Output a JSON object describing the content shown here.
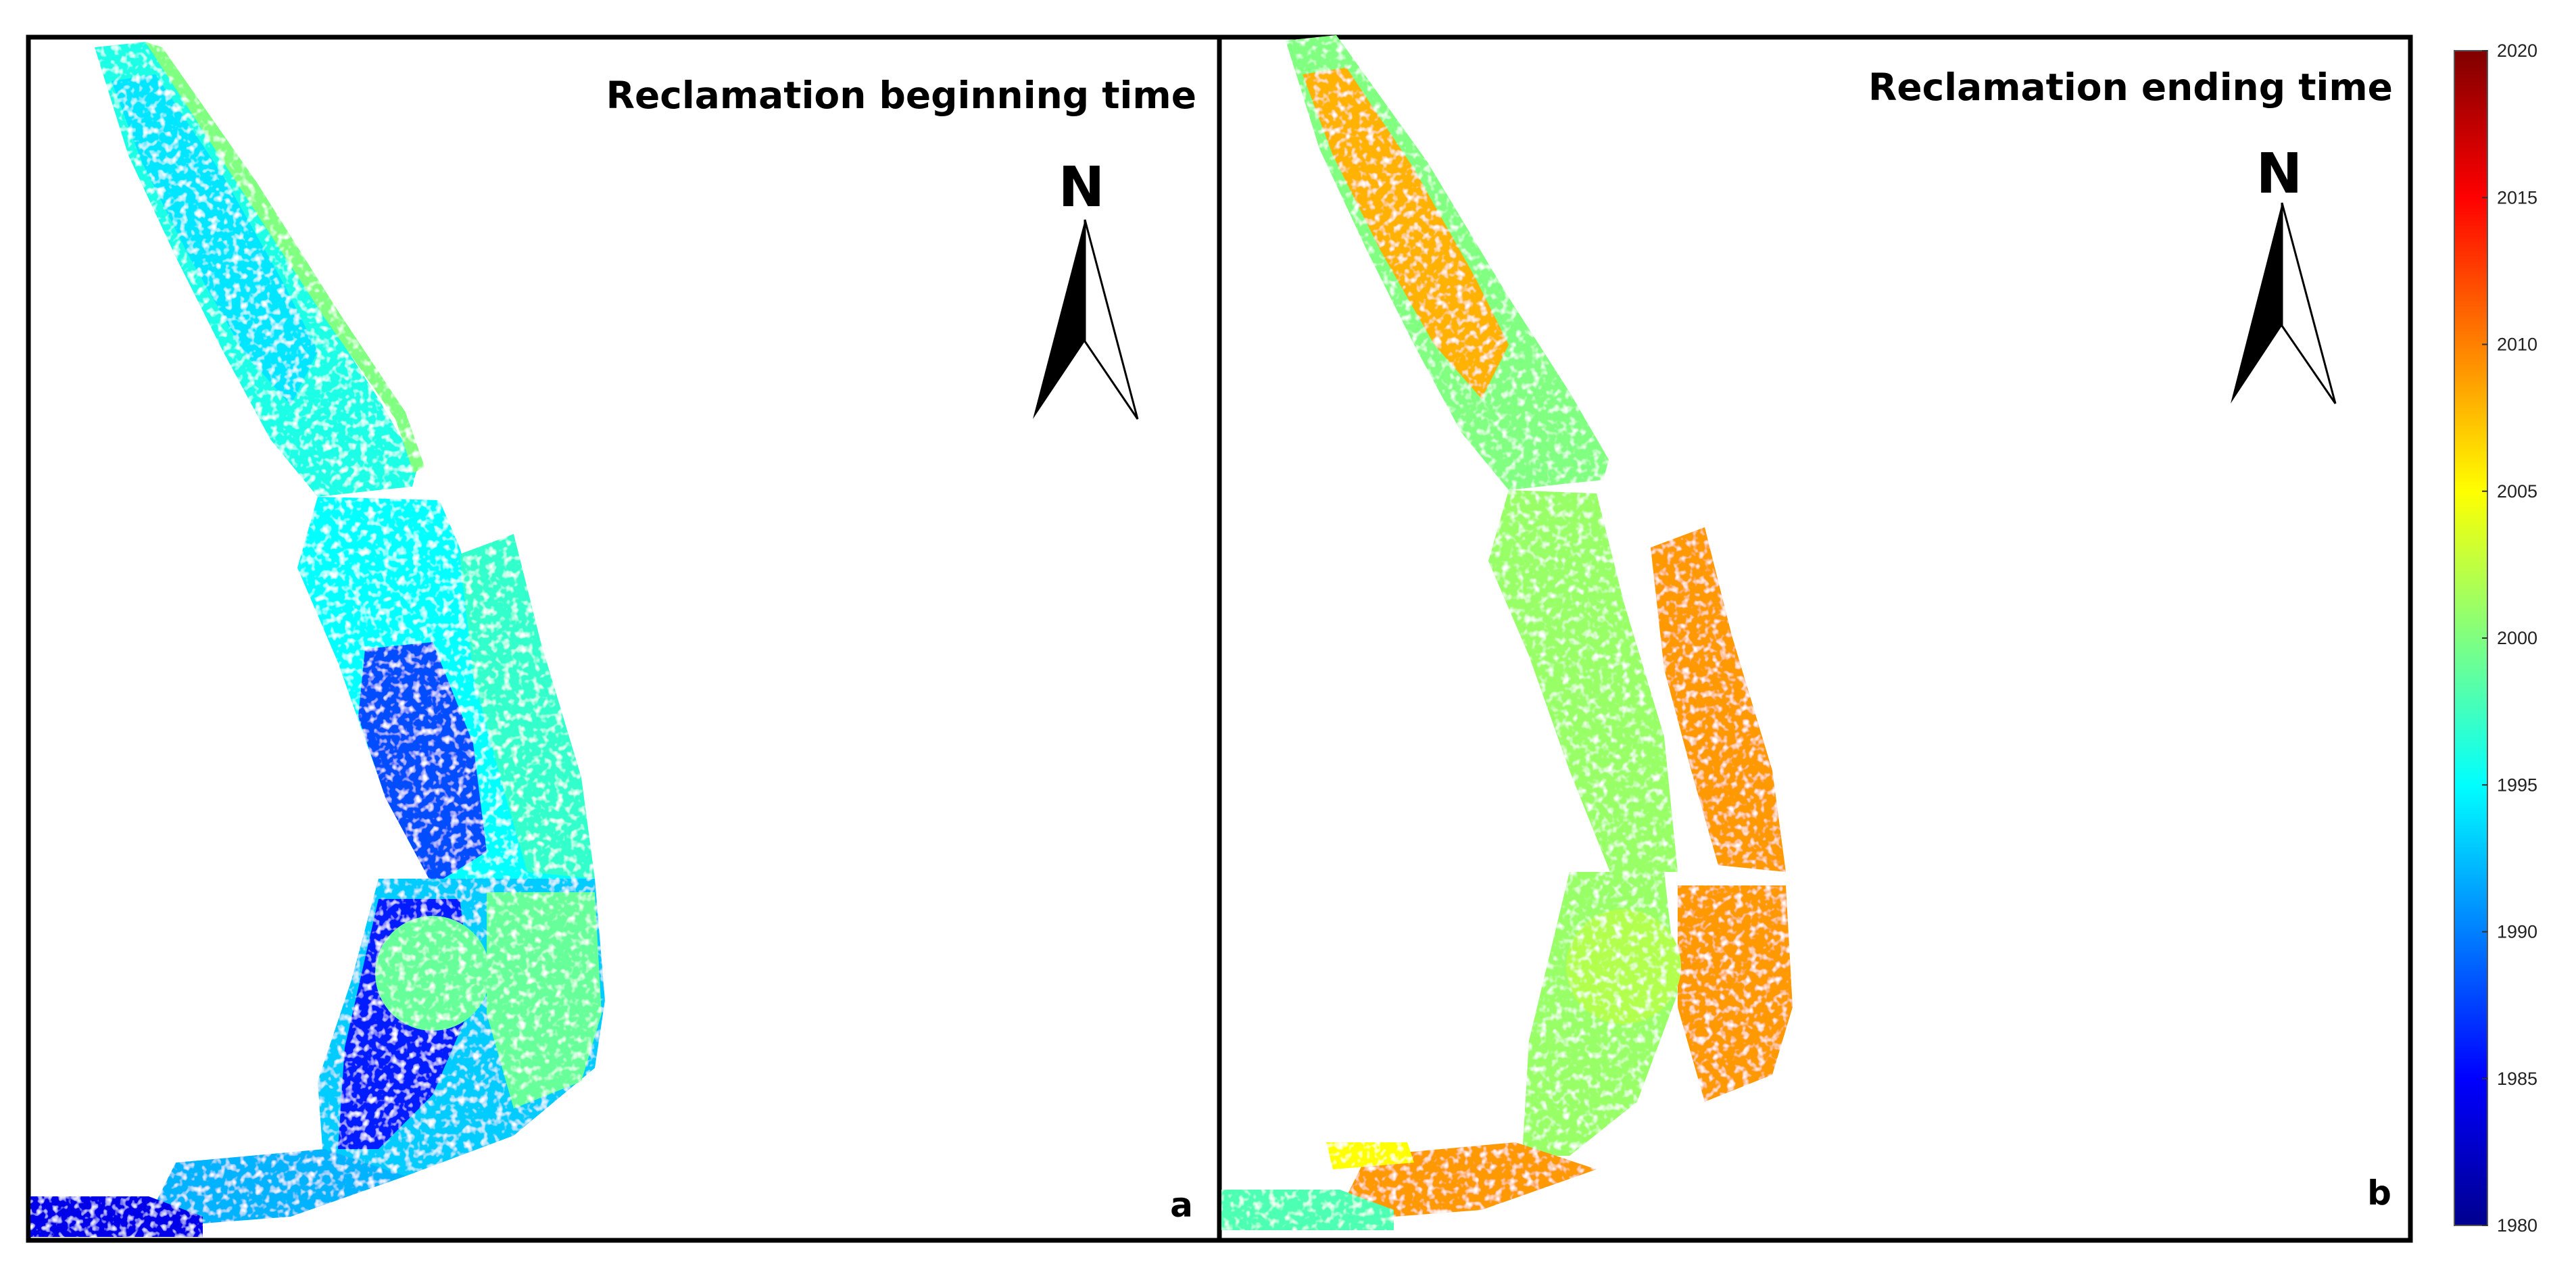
{
  "figure": {
    "panels": [
      {
        "id": "a",
        "title": "Reclamation beginning time",
        "letter": "a",
        "north_label": "N",
        "zones": [
          {
            "zone": "north-strip",
            "year": 1996
          },
          {
            "zone": "northern-inner",
            "year": 1994
          },
          {
            "zone": "north-dyke-edge",
            "year": 2000
          },
          {
            "zone": "middle-band",
            "year": 1995
          },
          {
            "zone": "middle-inner-west",
            "year": 1988
          },
          {
            "zone": "middle-east",
            "year": 1997
          },
          {
            "zone": "south-bulge",
            "year": 1993
          },
          {
            "zone": "south-inner-west",
            "year": 1986
          },
          {
            "zone": "south-east",
            "year": 1999
          },
          {
            "zone": "south-tail",
            "year": 1992
          },
          {
            "zone": "tail-base",
            "year": 1984
          },
          {
            "zone": "circle-area",
            "year": 1999
          }
        ]
      },
      {
        "id": "b",
        "title": "Reclamation ending time",
        "letter": "b",
        "north_label": "N",
        "zones": [
          {
            "zone": "north-strip",
            "year": 2000
          },
          {
            "zone": "north-inner",
            "year": 2008
          },
          {
            "zone": "middle-west",
            "year": 2001
          },
          {
            "zone": "middle-east",
            "year": 2009
          },
          {
            "zone": "south-west",
            "year": 2001
          },
          {
            "zone": "south-east",
            "year": 2009
          },
          {
            "zone": "circle-area",
            "year": 2002
          },
          {
            "zone": "south-tail",
            "year": 2009
          },
          {
            "zone": "tail-base",
            "year": 1998
          },
          {
            "zone": "tail-yellow",
            "year": 2005
          }
        ]
      }
    ],
    "colorbar": {
      "min": 1980,
      "max": 2020,
      "ticks": [
        "2020",
        "2015",
        "2010",
        "2005",
        "2000",
        "1995",
        "1990",
        "1985",
        "1980"
      ],
      "colormap": "jet",
      "colors": [
        "#00008F",
        "#0000FF",
        "#0080FF",
        "#00FFFF",
        "#80FF80",
        "#FFFF00",
        "#FF8000",
        "#FF0000",
        "#800000"
      ]
    }
  }
}
